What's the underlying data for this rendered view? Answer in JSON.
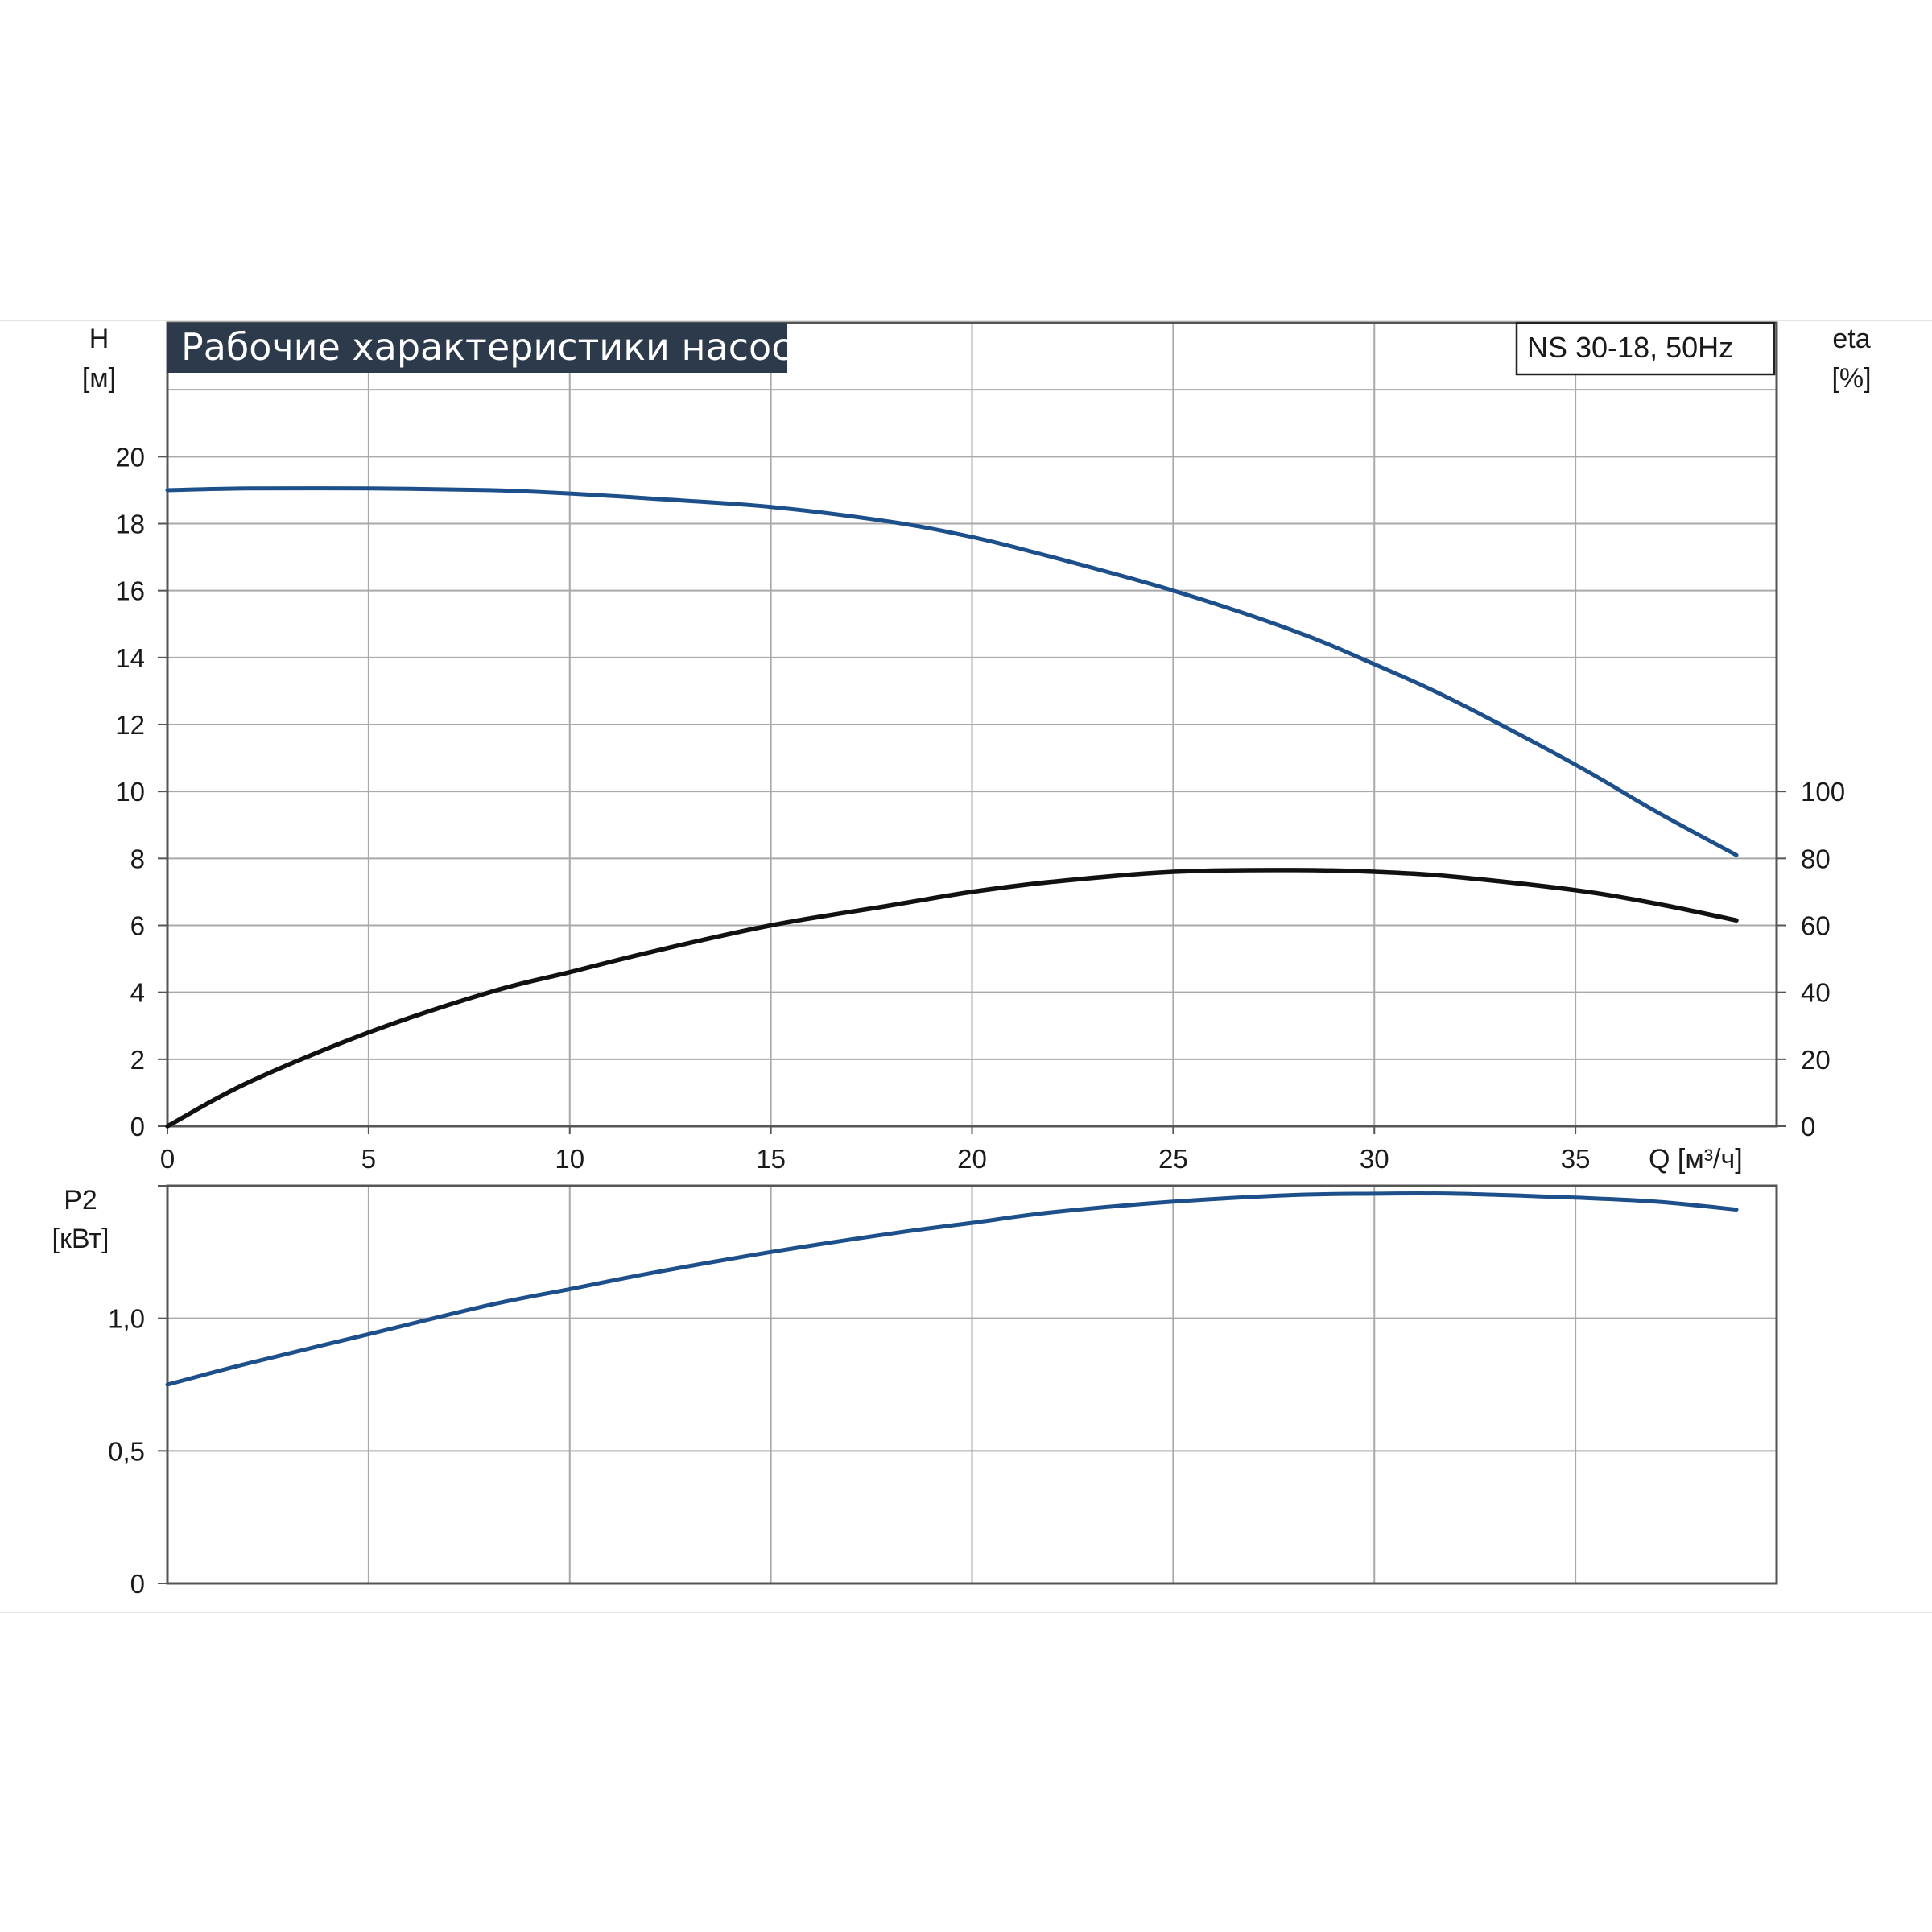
{
  "title": "Рабочие характеристики насоса",
  "model": "NS 30-18, 50Hz",
  "colors": {
    "title_bg": "#2d3a4b",
    "head_curve": "#1d4f8a",
    "efficiency_curve": "#111111",
    "power_curve": "#1d4f8a",
    "grid": "#a9a9a9",
    "frame": "#555555",
    "separator": "#e4e4e4"
  },
  "chart_data": [
    {
      "type": "line",
      "name": "head-efficiency",
      "x_axis": {
        "label": "Q [м³/ч]",
        "range": [
          0,
          40
        ],
        "ticks": [
          0,
          5,
          10,
          15,
          20,
          25,
          30,
          35
        ],
        "tick_labels": [
          "0",
          "5",
          "10",
          "15",
          "20",
          "25",
          "30",
          "35"
        ]
      },
      "y_left": {
        "label_line1": "H",
        "label_line2": "[м]",
        "range": [
          0,
          24
        ],
        "ticks": [
          0,
          2,
          4,
          6,
          8,
          10,
          12,
          14,
          16,
          18,
          20
        ],
        "tick_labels": [
          "0",
          "2",
          "4",
          "6",
          "8",
          "10",
          "12",
          "14",
          "16",
          "18",
          "20"
        ]
      },
      "y_right": {
        "label_line1": "eta",
        "label_line2": "[%]",
        "range": [
          0,
          240
        ],
        "ticks": [
          0,
          20,
          40,
          60,
          80,
          100
        ],
        "tick_labels": [
          "0",
          "20",
          "40",
          "60",
          "80",
          "100"
        ]
      },
      "grid": true,
      "series": [
        {
          "axis": "left",
          "x": [
            0,
            2,
            5,
            8,
            10,
            12,
            15,
            18,
            20,
            22,
            25,
            28,
            30,
            32,
            35,
            37,
            39
          ],
          "y": [
            19.0,
            19.05,
            19.05,
            19.0,
            18.9,
            18.75,
            18.5,
            18.05,
            17.6,
            17.0,
            16.0,
            14.8,
            13.8,
            12.7,
            10.8,
            9.4,
            8.1
          ]
        },
        {
          "axis": "right",
          "x": [
            0,
            2,
            5,
            8,
            10,
            12,
            15,
            18,
            20,
            22,
            25,
            28,
            30,
            32,
            35,
            37,
            39
          ],
          "y": [
            0,
            13,
            28,
            40,
            46,
            52,
            60,
            66,
            70,
            73,
            76,
            76.5,
            76,
            74.5,
            70.5,
            66.5,
            61.5
          ]
        }
      ]
    },
    {
      "type": "line",
      "name": "power",
      "x_axis": {
        "range": [
          0,
          40
        ],
        "ticks": [
          0,
          5,
          10,
          15,
          20,
          25,
          30,
          35,
          40
        ]
      },
      "y_left": {
        "label_line1": "P2",
        "label_line2": "[кВт]",
        "range": [
          0,
          1.5
        ],
        "ticks": [
          0,
          0.5,
          1.0,
          1.5
        ],
        "tick_labels": [
          "0",
          "0,5",
          "1,0",
          ""
        ]
      },
      "grid": true,
      "series": [
        {
          "axis": "left",
          "x": [
            0,
            2,
            5,
            8,
            10,
            12,
            15,
            18,
            20,
            22,
            25,
            28,
            30,
            32,
            35,
            37,
            39
          ],
          "y": [
            0.75,
            0.83,
            0.94,
            1.05,
            1.11,
            1.17,
            1.25,
            1.32,
            1.36,
            1.4,
            1.44,
            1.465,
            1.47,
            1.47,
            1.455,
            1.44,
            1.41
          ]
        }
      ]
    }
  ]
}
